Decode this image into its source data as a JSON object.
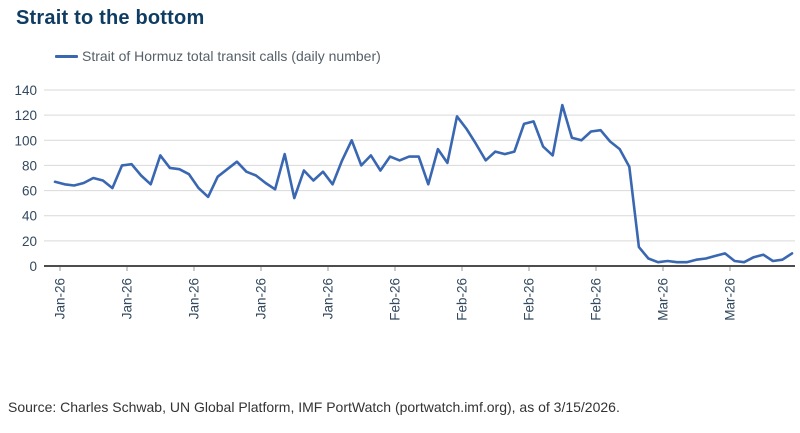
{
  "header": {
    "title": "Strait to the bottom"
  },
  "legend": {
    "label": "Strait of Hormuz total transit calls (daily number)"
  },
  "footer": {
    "source": "Source: Charles Schwab, UN Global Platform, IMF PortWatch (portwatch.imf.org), as of 3/15/2026."
  },
  "colors": {
    "title_text": "#0f3c63",
    "series_line": "#3a67b1",
    "axis_text": "#33495e",
    "legend_text": "#566069",
    "gridline": "#d9d9d9",
    "axis_line": "#4d4d4d",
    "tick_mark": "#999999",
    "source_text": "#333333"
  },
  "chart_data": {
    "type": "line",
    "title": "Strait to the bottom",
    "xlabel": "",
    "ylabel": "",
    "ylim": [
      0,
      140
    ],
    "y_ticks": [
      0,
      20,
      40,
      60,
      80,
      100,
      120,
      140
    ],
    "grid": "horizontal",
    "legend_position": "top-left",
    "x_tick_labels": [
      "Jan-26",
      "Jan-26",
      "Jan-26",
      "Jan-26",
      "Jan-26",
      "Feb-26",
      "Feb-26",
      "Feb-26",
      "Feb-26",
      "Mar-26",
      "Mar-26"
    ],
    "x_tick_indices": [
      0,
      7,
      14,
      21,
      28,
      35,
      42,
      49,
      56,
      63,
      70
    ],
    "series": [
      {
        "name": "Strait of Hormuz total transit calls (daily number)",
        "values": [
          67,
          65,
          64,
          66,
          70,
          68,
          62,
          80,
          81,
          72,
          65,
          88,
          78,
          77,
          73,
          62,
          55,
          71,
          77,
          83,
          75,
          72,
          66,
          61,
          89,
          54,
          76,
          68,
          75,
          65,
          84,
          100,
          80,
          88,
          76,
          87,
          84,
          87,
          87,
          65,
          93,
          82,
          119,
          109,
          97,
          84,
          91,
          89,
          91,
          113,
          115,
          95,
          88,
          128,
          102,
          100,
          107,
          108,
          99,
          93,
          79,
          15,
          6,
          3,
          4,
          3,
          3,
          5,
          6,
          8,
          10,
          4,
          3,
          7,
          9,
          4,
          5,
          10
        ]
      }
    ]
  }
}
